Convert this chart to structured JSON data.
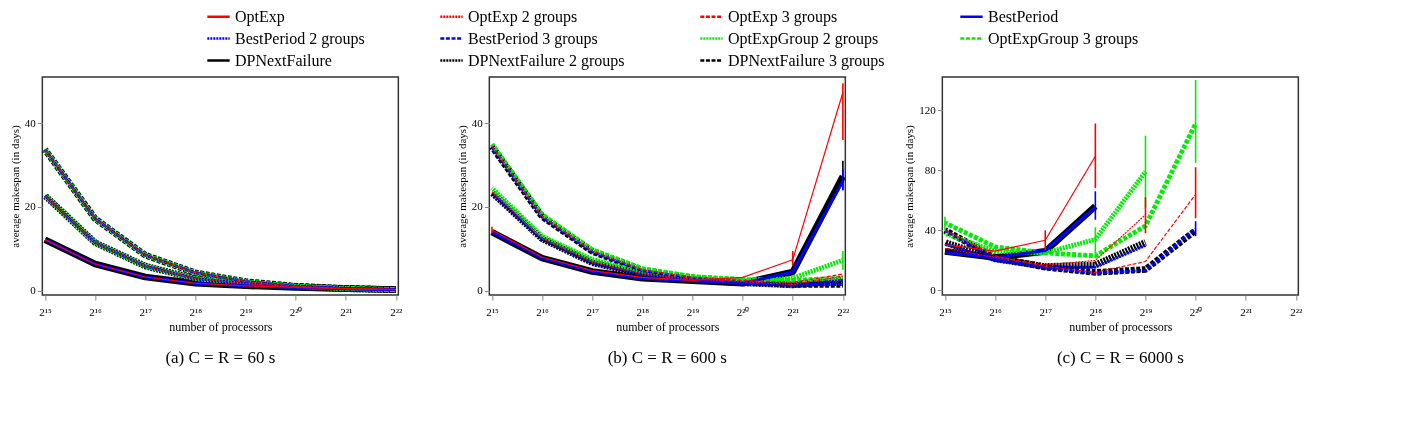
{
  "chart_data": [
    {
      "type": "line",
      "title": "(a) C = R = 60 s",
      "xlabel": "number of processors",
      "ylabel": "average makespan (in days)",
      "log": "x",
      "legend": "top",
      "x": [
        32768,
        65536,
        131072,
        262144,
        524288,
        1048576,
        2097152,
        4194304
      ],
      "xlim": [
        31600,
        4340000
      ],
      "xticks": [
        {
          "value": 32768,
          "label": "2¹⁵"
        },
        {
          "value": 65536,
          "label": "2¹⁶"
        },
        {
          "value": 131072,
          "label": "2¹⁷"
        },
        {
          "value": 262144,
          "label": "2¹⁸"
        },
        {
          "value": 524288,
          "label": "2¹⁹"
        },
        {
          "value": 1048576,
          "label": "2²⁰"
        },
        {
          "value": 2097152,
          "label": "2²¹"
        },
        {
          "value": 4194304,
          "label": "2²²"
        }
      ],
      "ylim": [
        -1,
        51
      ],
      "yticks": [
        0,
        20,
        40
      ],
      "series": [
        {
          "name": "OptExp",
          "color": "#ff0000",
          "line_style": "solid",
          "values": [
            12.2,
            6.4,
            3.3,
            1.8,
            1.2,
            0.8,
            0.5,
            0.3
          ]
        },
        {
          "name": "OptExp 2 groups",
          "color": "#ff0000",
          "line_style": "dotted",
          "values": [
            22.7,
            11.5,
            5.9,
            2.9,
            1.7,
            1.0,
            0.5,
            0.3
          ]
        },
        {
          "name": "OptExp 3 groups",
          "color": "#ff0000",
          "line_style": "dashed",
          "values": [
            33.7,
            17.2,
            8.5,
            4.3,
            2.2,
            1.1,
            0.6,
            0.3
          ]
        },
        {
          "name": "BestPeriod",
          "color": "#0000ff",
          "line_style": "solid",
          "values": [
            12.2,
            6.4,
            3.3,
            1.8,
            1.2,
            0.8,
            0.5,
            0.3
          ]
        },
        {
          "name": "BestPeriod 2 groups",
          "color": "#0000ff",
          "line_style": "dotted",
          "values": [
            22.7,
            11.5,
            5.9,
            2.9,
            1.7,
            1.0,
            0.5,
            0.3
          ]
        },
        {
          "name": "BestPeriod 3 groups",
          "color": "#0000ff",
          "line_style": "dashed",
          "values": [
            33.7,
            17.2,
            8.5,
            4.3,
            2.2,
            1.1,
            0.6,
            0.3
          ]
        },
        {
          "name": "OptExpGroup 2 groups",
          "color": "#00ee00",
          "line_style": "dotted",
          "values": [
            22.7,
            11.5,
            5.9,
            2.9,
            1.7,
            1.0,
            0.5,
            0.3
          ]
        },
        {
          "name": "OptExpGroup 3 groups",
          "color": "#00ee00",
          "line_style": "dashed",
          "values": [
            33.7,
            17.2,
            8.5,
            4.3,
            2.2,
            1.1,
            0.6,
            0.3
          ]
        },
        {
          "name": "DPNextFailure",
          "color": "#000000",
          "line_style": "solid",
          "values": [
            12.2,
            6.4,
            3.3,
            1.8,
            1.2,
            0.8,
            0.5,
            0.3
          ]
        },
        {
          "name": "DPNextFailure 2 groups",
          "color": "#000000",
          "line_style": "dotted",
          "values": [
            22.7,
            11.5,
            5.9,
            2.9,
            1.7,
            1.0,
            0.5,
            0.3
          ]
        },
        {
          "name": "DPNextFailure 3 groups",
          "color": "#000000",
          "line_style": "dashed",
          "values": [
            33.7,
            17.2,
            8.5,
            4.3,
            2.2,
            1.1,
            0.6,
            0.3
          ]
        }
      ]
    },
    {
      "type": "line",
      "title": "(b) C = R = 600 s",
      "xlabel": "number of processors",
      "ylabel": "average makespan (in days)",
      "log": "x",
      "legend": "top",
      "x": [
        32768,
        65536,
        131072,
        262144,
        524288,
        1048576,
        2097152,
        4194304
      ],
      "xlim": [
        31600,
        4340000
      ],
      "xticks": [
        {
          "value": 32768,
          "label": "2¹⁵"
        },
        {
          "value": 65536,
          "label": "2¹⁶"
        },
        {
          "value": 131072,
          "label": "2¹⁷"
        },
        {
          "value": 262144,
          "label": "2¹⁸"
        },
        {
          "value": 524288,
          "label": "2¹⁹"
        },
        {
          "value": 1048576,
          "label": "2²⁰"
        },
        {
          "value": 2097152,
          "label": "2²¹"
        },
        {
          "value": 4194304,
          "label": "2²²"
        }
      ],
      "ylim": [
        -1,
        51
      ],
      "yticks": [
        0,
        20,
        40
      ],
      "series": [
        {
          "name": "OptExp",
          "color": "#ff0000",
          "line_style": "solid",
          "values": [
            14.5,
            8,
            4.8,
            3.2,
            2.5,
            3.2,
            7.4,
            47.3
          ],
          "errors": [
            [
              13.8,
              15.3
            ],
            null,
            null,
            null,
            null,
            null,
            [
              6,
              9.5
            ],
            [
              36,
              49.5
            ]
          ]
        },
        {
          "name": "OptExp 2 groups",
          "color": "#ff0000",
          "line_style": "dotted",
          "values": [
            23.5,
            12.5,
            6.8,
            4,
            2.8,
            2.2,
            1.5,
            3.5
          ]
        },
        {
          "name": "OptExp 3 groups",
          "color": "#ff0000",
          "line_style": "dashed",
          "values": [
            34.5,
            17.8,
            9.5,
            5,
            3.2,
            2.5,
            2.0,
            4.0
          ]
        },
        {
          "name": "BestPeriod",
          "color": "#0000ff",
          "line_style": "solid",
          "values": [
            14,
            7.8,
            4.6,
            3,
            2.4,
            1.8,
            4.5,
            26.2
          ],
          "errors": [
            null,
            null,
            null,
            null,
            null,
            null,
            null,
            [
              24,
              29
            ]
          ]
        },
        {
          "name": "BestPeriod 2 groups",
          "color": "#0000ff",
          "line_style": "dotted",
          "values": [
            23.3,
            12.3,
            6.6,
            3.8,
            2.6,
            1.8,
            1.3,
            2.5
          ]
        },
        {
          "name": "BestPeriod 3 groups",
          "color": "#0000ff",
          "line_style": "dashed",
          "values": [
            34.3,
            17.6,
            9.3,
            4.8,
            3.0,
            2.0,
            1.4,
            1.5
          ]
        },
        {
          "name": "OptExpGroup 2 groups",
          "color": "#00ee00",
          "line_style": "dotted",
          "values": [
            24.5,
            13,
            7.5,
            4.3,
            3.0,
            2.4,
            3.0,
            7.3
          ],
          "errors": [
            null,
            null,
            null,
            null,
            null,
            null,
            null,
            [
              5,
              9.5
            ]
          ]
        },
        {
          "name": "OptExpGroup 3 groups",
          "color": "#00ee00",
          "line_style": "dashed",
          "values": [
            35,
            18.2,
            9.8,
            5.3,
            3.4,
            2.7,
            2.5,
            3.0
          ]
        },
        {
          "name": "DPNextFailure",
          "color": "#000000",
          "line_style": "solid",
          "values": [
            14,
            7.8,
            4.6,
            3,
            2.4,
            1.8,
            4.5,
            27.3
          ],
          "errors": [
            null,
            null,
            null,
            null,
            null,
            null,
            null,
            [
              24,
              31
            ]
          ]
        },
        {
          "name": "DPNextFailure 2 groups",
          "color": "#000000",
          "line_style": "dotted",
          "values": [
            23.4,
            12.4,
            6.7,
            3.9,
            2.7,
            1.9,
            1.4,
            2.5
          ]
        },
        {
          "name": "DPNextFailure 3 groups",
          "color": "#000000",
          "line_style": "dashed",
          "values": [
            34.4,
            17.7,
            9.4,
            4.9,
            3.1,
            2.1,
            1.5,
            1.5
          ]
        }
      ]
    },
    {
      "type": "line",
      "title": "(c) C = R = 6000 s",
      "xlabel": "number of processors",
      "ylabel": "average makespan (in days)",
      "log": "x",
      "legend": "top",
      "x": [
        32768,
        65536,
        131072,
        262144,
        524288,
        1048576
      ],
      "xlim": [
        31600,
        4340000
      ],
      "xticks": [
        {
          "value": 32768,
          "label": "2¹⁵"
        },
        {
          "value": 65536,
          "label": "2¹⁶"
        },
        {
          "value": 131072,
          "label": "2¹⁷"
        },
        {
          "value": 262144,
          "label": "2¹⁸"
        },
        {
          "value": 524288,
          "label": "2¹⁹"
        },
        {
          "value": 1048576,
          "label": "2²⁰"
        },
        {
          "value": 2097152,
          "label": "2²¹"
        },
        {
          "value": 4194304,
          "label": "2²²"
        }
      ],
      "ylim": [
        -3,
        142
      ],
      "yticks": [
        0,
        40,
        80,
        120
      ],
      "series": [
        {
          "name": "OptExp",
          "color": "#ff0000",
          "line_style": "solid",
          "values": [
            30.3,
            26.2,
            33.4,
            89.3,
            null,
            null
          ],
          "errors": [
            null,
            null,
            [
              27,
              40
            ],
            [
              68,
              111
            ],
            null,
            null
          ]
        },
        {
          "name": "OptExp 2 groups",
          "color": "#ff0000",
          "line_style": "dotted",
          "values": [
            28,
            22,
            17,
            20,
            50.4,
            null
          ],
          "errors": [
            null,
            null,
            null,
            null,
            [
              38,
              62
            ],
            null
          ]
        },
        {
          "name": "OptExp 3 groups",
          "color": "#ff0000",
          "line_style": "dashed",
          "values": [
            40,
            23,
            16,
            12,
            19.3,
            64
          ],
          "errors": [
            null,
            null,
            null,
            null,
            null,
            [
              48,
              82
            ]
          ]
        },
        {
          "name": "BestPeriod",
          "color": "#0000ff",
          "line_style": "solid",
          "values": [
            25.2,
            22,
            26.6,
            55.5,
            null,
            null
          ],
          "errors": [
            null,
            null,
            null,
            [
              47,
              66
            ],
            null,
            null
          ]
        },
        {
          "name": "BestPeriod 2 groups",
          "color": "#0000ff",
          "line_style": "dotted",
          "values": [
            31,
            20,
            15.5,
            15.5,
            30,
            null
          ]
        },
        {
          "name": "BestPeriod 3 groups",
          "color": "#0000ff",
          "line_style": "dashed",
          "values": [
            40,
            21,
            15,
            11.5,
            13.5,
            41
          ],
          "errors": [
            null,
            null,
            null,
            null,
            null,
            [
              36,
              46
            ]
          ]
        },
        {
          "name": "OptExpGroup 2 groups",
          "color": "#00ee00",
          "line_style": "dotted",
          "values": [
            38,
            26,
            25,
            34,
            79,
            null
          ],
          "errors": [
            null,
            null,
            null,
            [
              25,
              42
            ],
            [
              55,
              103
            ],
            null
          ]
        },
        {
          "name": "OptExpGroup 3 groups",
          "color": "#00ee00",
          "line_style": "dashed",
          "values": [
            45,
            29,
            25,
            23,
            43,
            111
          ],
          "errors": [
            [
              40,
              49
            ],
            null,
            null,
            null,
            null,
            [
              85,
              140
            ]
          ]
        },
        {
          "name": "DPNextFailure",
          "color": "#000000",
          "line_style": "solid",
          "values": [
            26,
            22,
            26,
            56,
            null,
            null
          ]
        },
        {
          "name": "DPNextFailure 2 groups",
          "color": "#000000",
          "line_style": "dotted",
          "values": [
            32,
            21,
            16,
            17,
            32,
            null
          ]
        },
        {
          "name": "DPNextFailure 3 groups",
          "color": "#000000",
          "line_style": "dashed",
          "values": [
            40,
            22,
            15.5,
            12,
            14,
            40
          ]
        }
      ]
    }
  ]
}
